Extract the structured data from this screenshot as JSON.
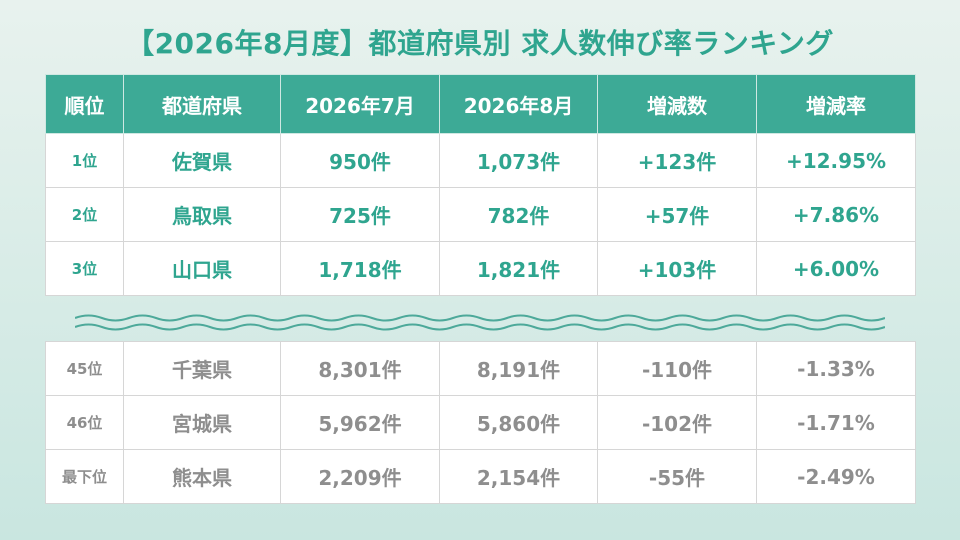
{
  "title": "【2026年8月度】都道府県別 求人数伸び率ランキング",
  "headers": [
    "順位",
    "都道府県",
    "2026年7月",
    "2026年8月",
    "増減数",
    "増減率"
  ],
  "top_rows": [
    [
      "1位",
      "佐賀県",
      "950件",
      "1,073件",
      "+123件",
      "+12.95%"
    ],
    [
      "2位",
      "鳥取県",
      "725件",
      "782件",
      "+57件",
      "+7.86%"
    ],
    [
      "3位",
      "山口県",
      "1,718件",
      "1,821件",
      "+103件",
      "+6.00%"
    ]
  ],
  "bottom_rows": [
    [
      "45位",
      "千葉県",
      "8,301件",
      "8,191件",
      "-110件",
      "-1.33%"
    ],
    [
      "46位",
      "宮城県",
      "5,962件",
      "5,860件",
      "-102件",
      "-1.71%"
    ],
    [
      "最下位",
      "熊本県",
      "2,209件",
      "2,154件",
      "-55件",
      "-2.49%"
    ]
  ],
  "colors": {
    "accent": "#3daa96",
    "title": "#2fa58f",
    "muted": "#8e8e8e"
  },
  "icons": {
    "separator": "wave-separator-icon"
  }
}
